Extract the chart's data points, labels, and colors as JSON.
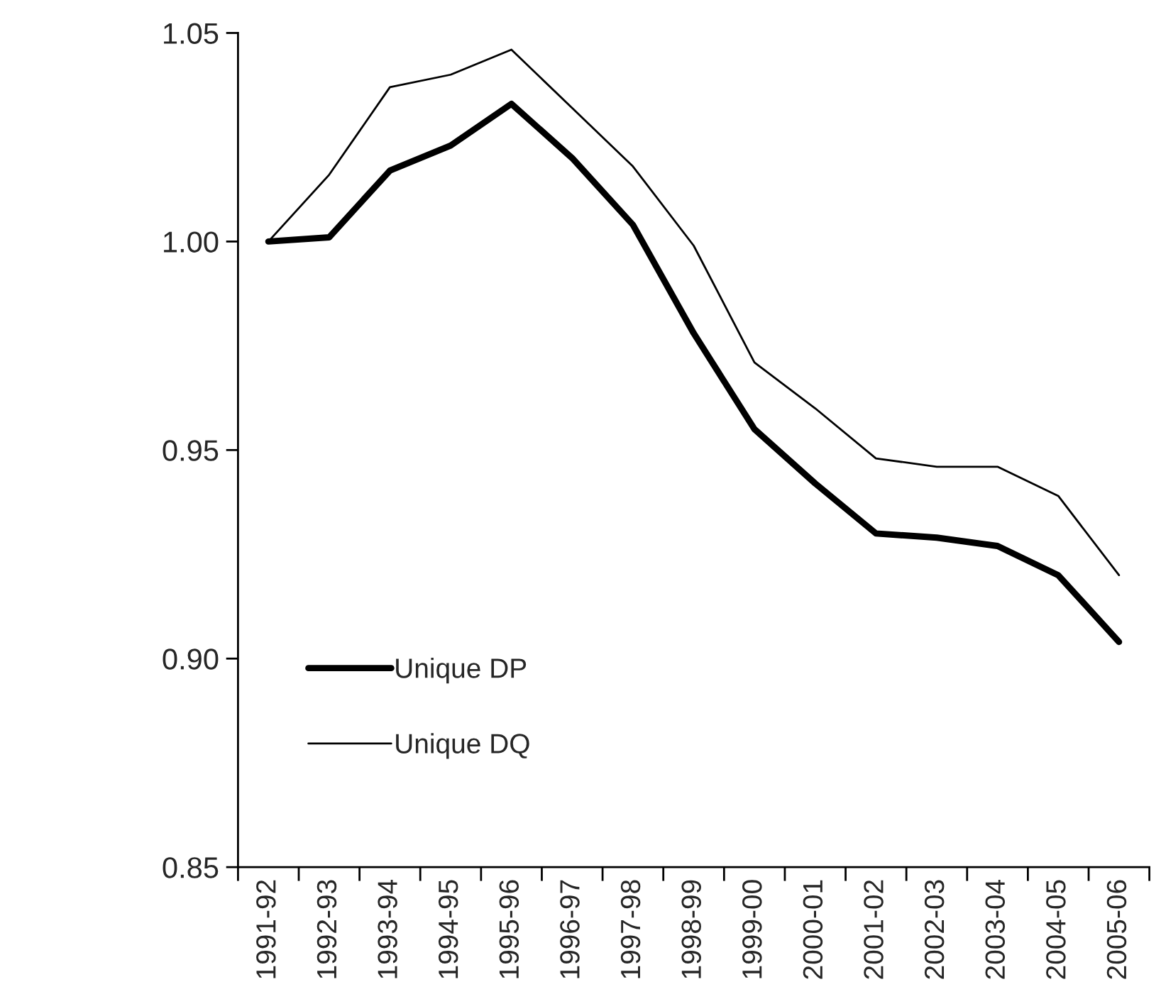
{
  "chart_data": {
    "type": "line",
    "categories": [
      "1991-92",
      "1992-93",
      "1993-94",
      "1994-95",
      "1995-96",
      "1996-97",
      "1997-98",
      "1998-99",
      "1999-00",
      "2000-01",
      "2001-02",
      "2002-03",
      "2003-04",
      "2004-05",
      "2005-06"
    ],
    "series": [
      {
        "name": "Unique DP",
        "color": "#000000",
        "values": [
          1.0,
          1.001,
          1.017,
          1.023,
          1.033,
          1.02,
          1.004,
          0.978,
          0.955,
          0.942,
          0.93,
          0.929,
          0.927,
          0.92,
          0.904
        ]
      },
      {
        "name": "Unique DQ",
        "color": "#000000",
        "values": [
          1.0,
          1.016,
          1.037,
          1.04,
          1.046,
          1.032,
          1.018,
          0.999,
          0.971,
          0.96,
          0.948,
          0.946,
          0.946,
          0.939,
          0.92
        ]
      }
    ],
    "ylim": [
      0.85,
      1.05
    ],
    "yticks": [
      {
        "value": 0.85,
        "label": "0.85"
      },
      {
        "value": 0.9,
        "label": "0.90"
      },
      {
        "value": 0.95,
        "label": "0.95"
      },
      {
        "value": 1.0,
        "label": "1.00"
      },
      {
        "value": 1.05,
        "label": "1.05"
      }
    ],
    "grid": false,
    "legend": "bottom left",
    "marker": "none",
    "line_style": "solid"
  }
}
